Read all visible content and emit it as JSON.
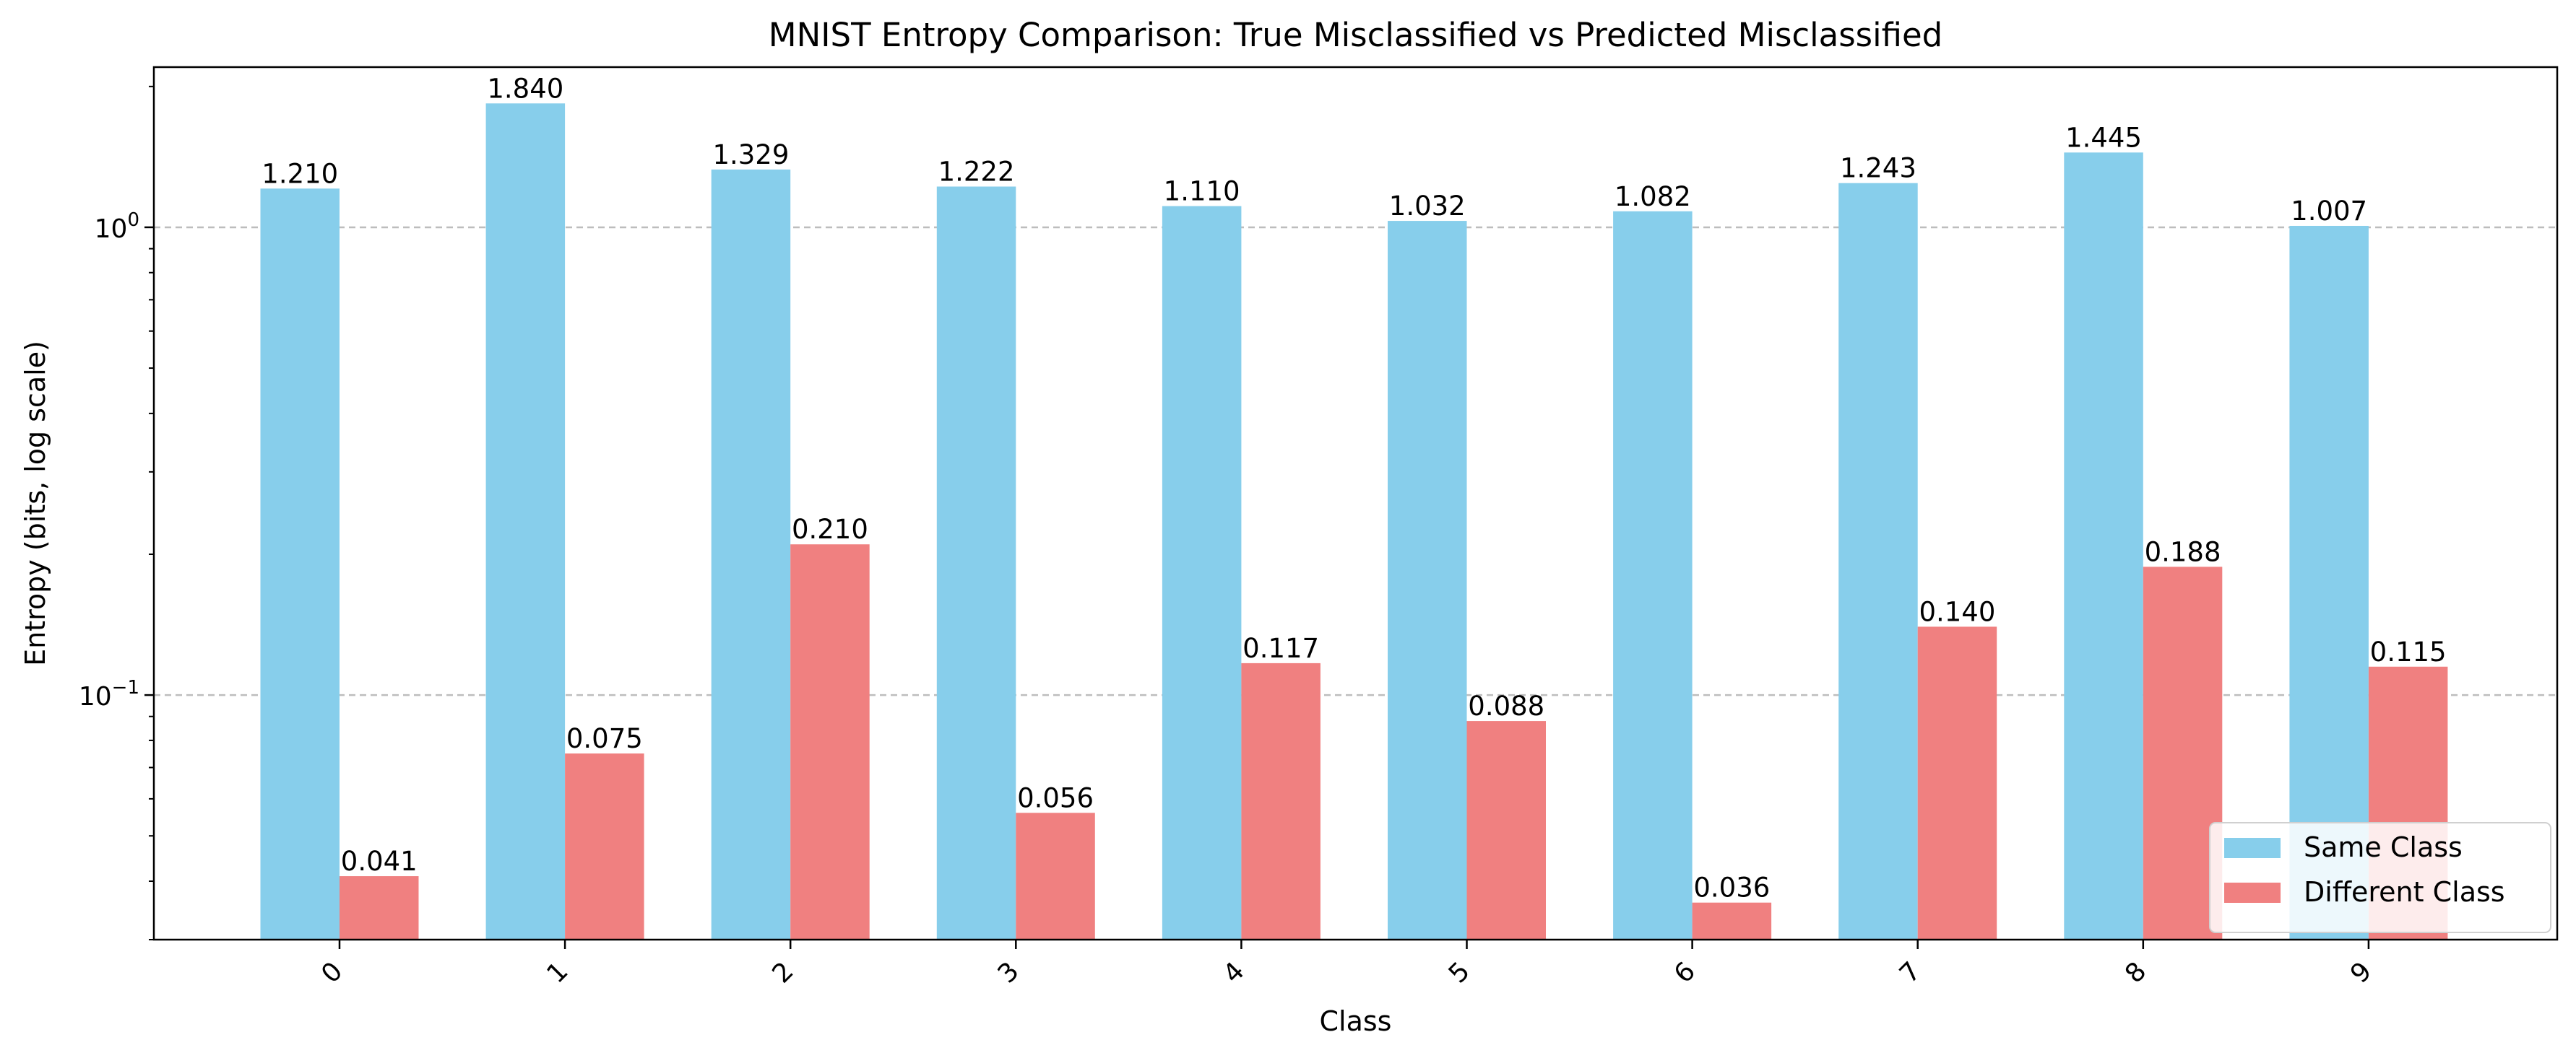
{
  "chart_data": {
    "type": "bar",
    "title": "MNIST Entropy Comparison: True Misclassified vs Predicted Misclassified",
    "xlabel": "Class",
    "ylabel": "Entropy (bits, log scale)",
    "yscale": "log",
    "ylim": [
      0.03,
      2.2
    ],
    "yticks": [
      {
        "value": 1,
        "base": "10",
        "exp": "0"
      },
      {
        "value": 0.1,
        "base": "10",
        "exp": "−1"
      }
    ],
    "grid": "y-major dashed",
    "legend_position": "lower-right",
    "categories": [
      "0",
      "1",
      "2",
      "3",
      "4",
      "5",
      "6",
      "7",
      "8",
      "9"
    ],
    "series": [
      {
        "name": "Same Class",
        "color": "#87ceeb",
        "values": [
          1.21,
          1.84,
          1.329,
          1.222,
          1.11,
          1.032,
          1.082,
          1.243,
          1.445,
          1.007
        ],
        "labels": [
          "1.210",
          "1.840",
          "1.329",
          "1.222",
          "1.110",
          "1.032",
          "1.082",
          "1.243",
          "1.445",
          "1.007"
        ]
      },
      {
        "name": "Different Class",
        "color": "#f08080",
        "values": [
          0.041,
          0.075,
          0.21,
          0.056,
          0.117,
          0.088,
          0.036,
          0.14,
          0.188,
          0.115
        ],
        "labels": [
          "0.041",
          "0.075",
          "0.210",
          "0.056",
          "0.117",
          "0.088",
          "0.036",
          "0.140",
          "0.188",
          "0.115"
        ]
      }
    ]
  }
}
